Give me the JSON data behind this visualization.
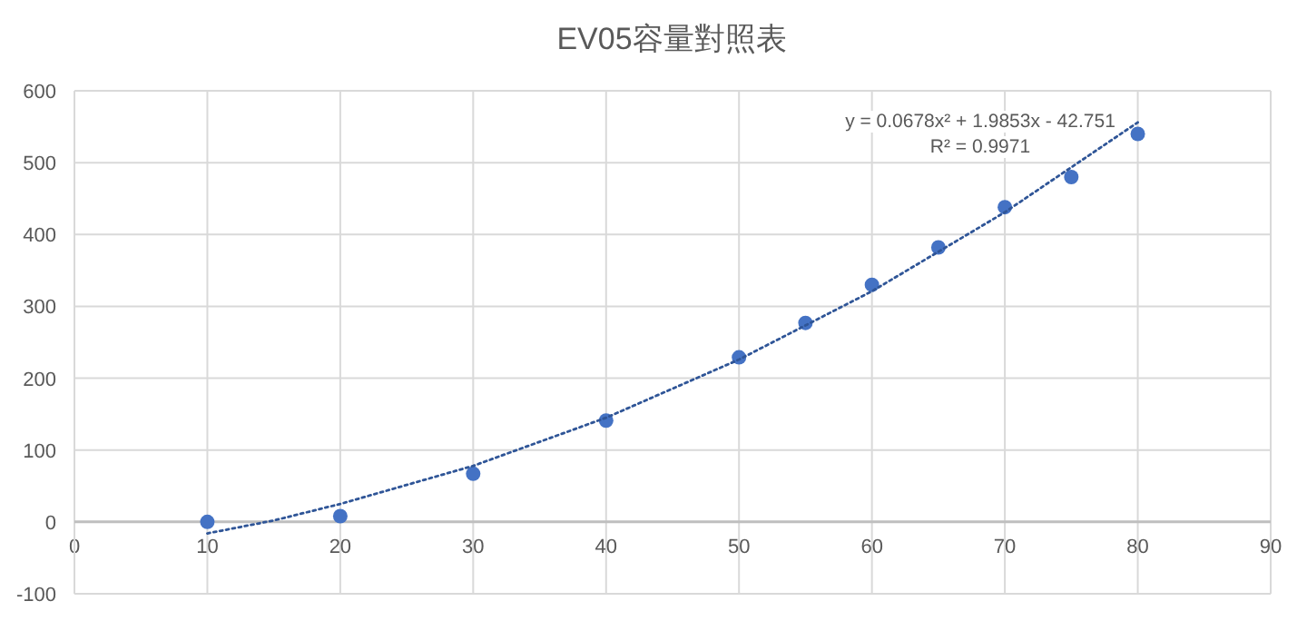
{
  "chart_data": {
    "type": "scatter",
    "title": "EV05容量對照表",
    "series": [
      {
        "type": "scatter",
        "color": "#4472c4",
        "marker": "circle",
        "x": [
          10,
          20,
          30,
          40,
          50,
          55,
          60,
          65,
          70,
          75,
          80
        ],
        "values": [
          0,
          8,
          67,
          141,
          229,
          277,
          330,
          382,
          438,
          480,
          540
        ]
      },
      {
        "type": "line",
        "color": "#2f5597",
        "line_style": "dotted",
        "marker": "none",
        "x": [
          10,
          15,
          20,
          30,
          40,
          50,
          60,
          70,
          80
        ],
        "values": [
          -16,
          2,
          25,
          78,
          145,
          226,
          321,
          431,
          556
        ]
      }
    ],
    "xlim": [
      0,
      90
    ],
    "ylim": [
      -100,
      600
    ],
    "xticks": [
      0,
      10,
      20,
      30,
      40,
      50,
      60,
      70,
      80,
      90
    ],
    "yticks": [
      -100,
      0,
      100,
      200,
      300,
      400,
      500,
      600
    ],
    "grid": true,
    "annotations": [
      "y = 0.0678x² + 1.9853x - 42.751",
      "R² = 0.9971"
    ]
  }
}
